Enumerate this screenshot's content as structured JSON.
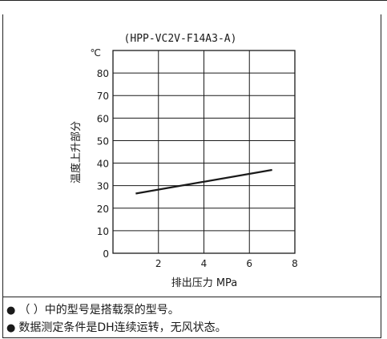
{
  "chart_data": {
    "type": "line",
    "title": "(HPP-VC2V-F14A3-A)",
    "unit_label": "℃",
    "xlabel": "排出压力 MPa",
    "ylabel": "温度上升部分",
    "xlim": [
      0,
      8
    ],
    "ylim": [
      0,
      90
    ],
    "x_ticks": [
      2,
      4,
      6,
      8
    ],
    "y_ticks": [
      0,
      10,
      20,
      30,
      40,
      50,
      60,
      70,
      80
    ],
    "grid": true,
    "series": [
      {
        "x": [
          1,
          7
        ],
        "y": [
          26.5,
          37
        ]
      }
    ]
  },
  "notes": [
    "（ ）中的型号是搭载泵的型号。",
    "数据测定条件是DH连续运转，无风状态。"
  ],
  "colors": {
    "line": "#1a1a1a",
    "grid": "#1a1a1a",
    "border": "#222222"
  }
}
